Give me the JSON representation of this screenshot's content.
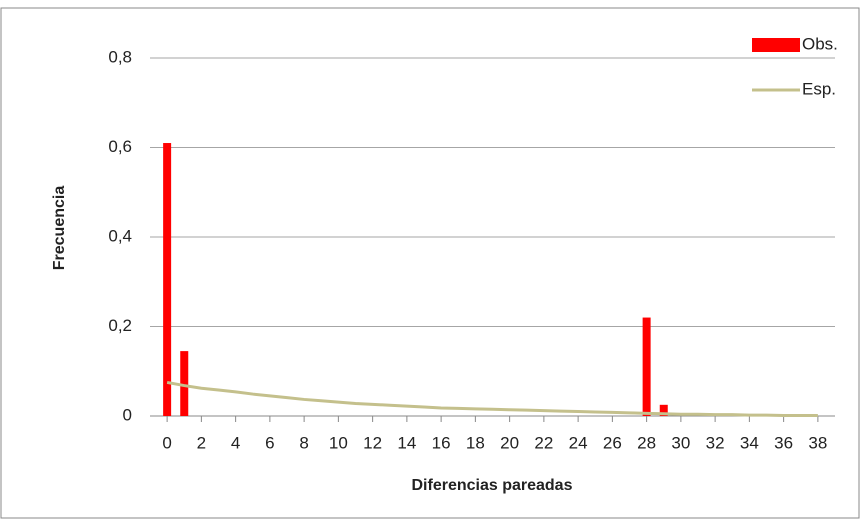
{
  "chart_data": {
    "type": "bar_line",
    "x_label": "Diferencias pareadas",
    "y_label": "Frecuencia",
    "x": [
      0,
      1,
      2,
      3,
      4,
      5,
      6,
      7,
      8,
      9,
      10,
      11,
      12,
      13,
      14,
      15,
      16,
      17,
      18,
      19,
      20,
      21,
      22,
      23,
      24,
      25,
      26,
      27,
      28,
      29,
      30,
      31,
      32,
      33,
      34,
      35,
      36,
      37,
      38
    ],
    "series": [
      {
        "name": "Obs.",
        "kind": "bar",
        "color": "#ff0000",
        "values": [
          0.61,
          0.145,
          0,
          0,
          0,
          0,
          0,
          0,
          0,
          0,
          0,
          0,
          0,
          0,
          0,
          0,
          0,
          0,
          0,
          0,
          0,
          0,
          0,
          0,
          0,
          0,
          0,
          0,
          0.22,
          0.025,
          0,
          0,
          0,
          0,
          0,
          0,
          0,
          0,
          0
        ]
      },
      {
        "name": "Esp.",
        "kind": "line",
        "color": "#c4c08c",
        "values": [
          0.075,
          0.068,
          0.062,
          0.058,
          0.054,
          0.049,
          0.045,
          0.041,
          0.037,
          0.034,
          0.031,
          0.028,
          0.026,
          0.024,
          0.022,
          0.02,
          0.018,
          0.017,
          0.016,
          0.015,
          0.014,
          0.013,
          0.012,
          0.011,
          0.01,
          0.009,
          0.008,
          0.007,
          0.006,
          0.005,
          0.004,
          0.004,
          0.003,
          0.003,
          0.002,
          0.002,
          0.001,
          0.001,
          0.001
        ]
      }
    ],
    "xlim": [
      -1,
      39
    ],
    "xticks": [
      0,
      2,
      4,
      6,
      8,
      10,
      12,
      14,
      16,
      18,
      20,
      22,
      24,
      26,
      28,
      30,
      32,
      34,
      36,
      38
    ],
    "ylim": [
      0,
      0.8
    ],
    "yticks": [
      0,
      {
        "value": 0.2,
        "label": "0,2"
      },
      {
        "value": 0.4,
        "label": "0,4"
      },
      {
        "value": 0.6,
        "label": "0,6"
      },
      {
        "value": 0.8,
        "label": "0,8"
      }
    ],
    "grid": true,
    "legend": "top-right"
  }
}
